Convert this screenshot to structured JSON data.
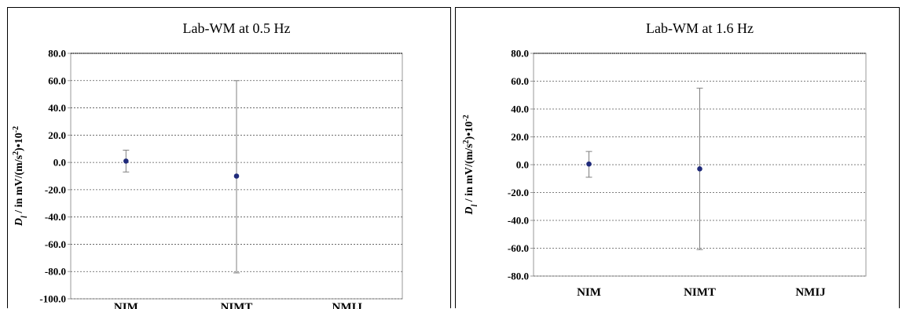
{
  "chart_data": [
    {
      "type": "scatter",
      "title": "Lab-WM at 0.5 Hz",
      "ylabel": "D_l / in mV/(m/s²)•10⁻²",
      "ylabel_parts": {
        "sym": "D",
        "sub": "l",
        "mid": " / in mV/(m/s",
        "sup1": "2",
        "close": ")•10",
        "sup2": "-2"
      },
      "categories": [
        "NIM",
        "NIMT",
        "NMIJ"
      ],
      "ylim": [
        -100,
        80
      ],
      "y_step": 20,
      "y_ticks": [
        "80.0",
        "60.0",
        "40.0",
        "20.0",
        "0.0",
        "-20.0",
        "-40.0",
        "-60.0",
        "-80.0",
        "-100.0"
      ],
      "grid": true,
      "series": [
        {
          "points": [
            {
              "category": "NIM",
              "value": 1.0,
              "err_low": -7.0,
              "err_high": 9.0
            },
            {
              "category": "NIMT",
              "value": -10.0,
              "err_low": -81.0,
              "err_high": 60.0
            }
          ]
        }
      ],
      "colors": {
        "marker": "#1f2a7a",
        "errorbar": "#808080",
        "grid": "#555555"
      }
    },
    {
      "type": "scatter",
      "title": "Lab-WM at 1.6 Hz",
      "ylabel": "D_l / in mV/(m/s²)•10⁻²",
      "ylabel_parts": {
        "sym": "D",
        "sub": "l",
        "mid": " / in mV/(m/s",
        "sup1": "2",
        "close": ")•10",
        "sup2": "-2"
      },
      "categories": [
        "NIM",
        "NIMT",
        "NMIJ"
      ],
      "ylim": [
        -80,
        80
      ],
      "y_step": 20,
      "y_ticks": [
        "80.0",
        "60.0",
        "40.0",
        "20.0",
        "0.0",
        "-20.0",
        "-40.0",
        "-60.0",
        "-80.0"
      ],
      "grid": true,
      "series": [
        {
          "points": [
            {
              "category": "NIM",
              "value": 0.5,
              "err_low": -9.0,
              "err_high": 9.5
            },
            {
              "category": "NIMT",
              "value": -3.0,
              "err_low": -61.0,
              "err_high": 55.0
            }
          ]
        }
      ],
      "colors": {
        "marker": "#1f2a7a",
        "errorbar": "#808080",
        "grid": "#555555"
      }
    }
  ]
}
